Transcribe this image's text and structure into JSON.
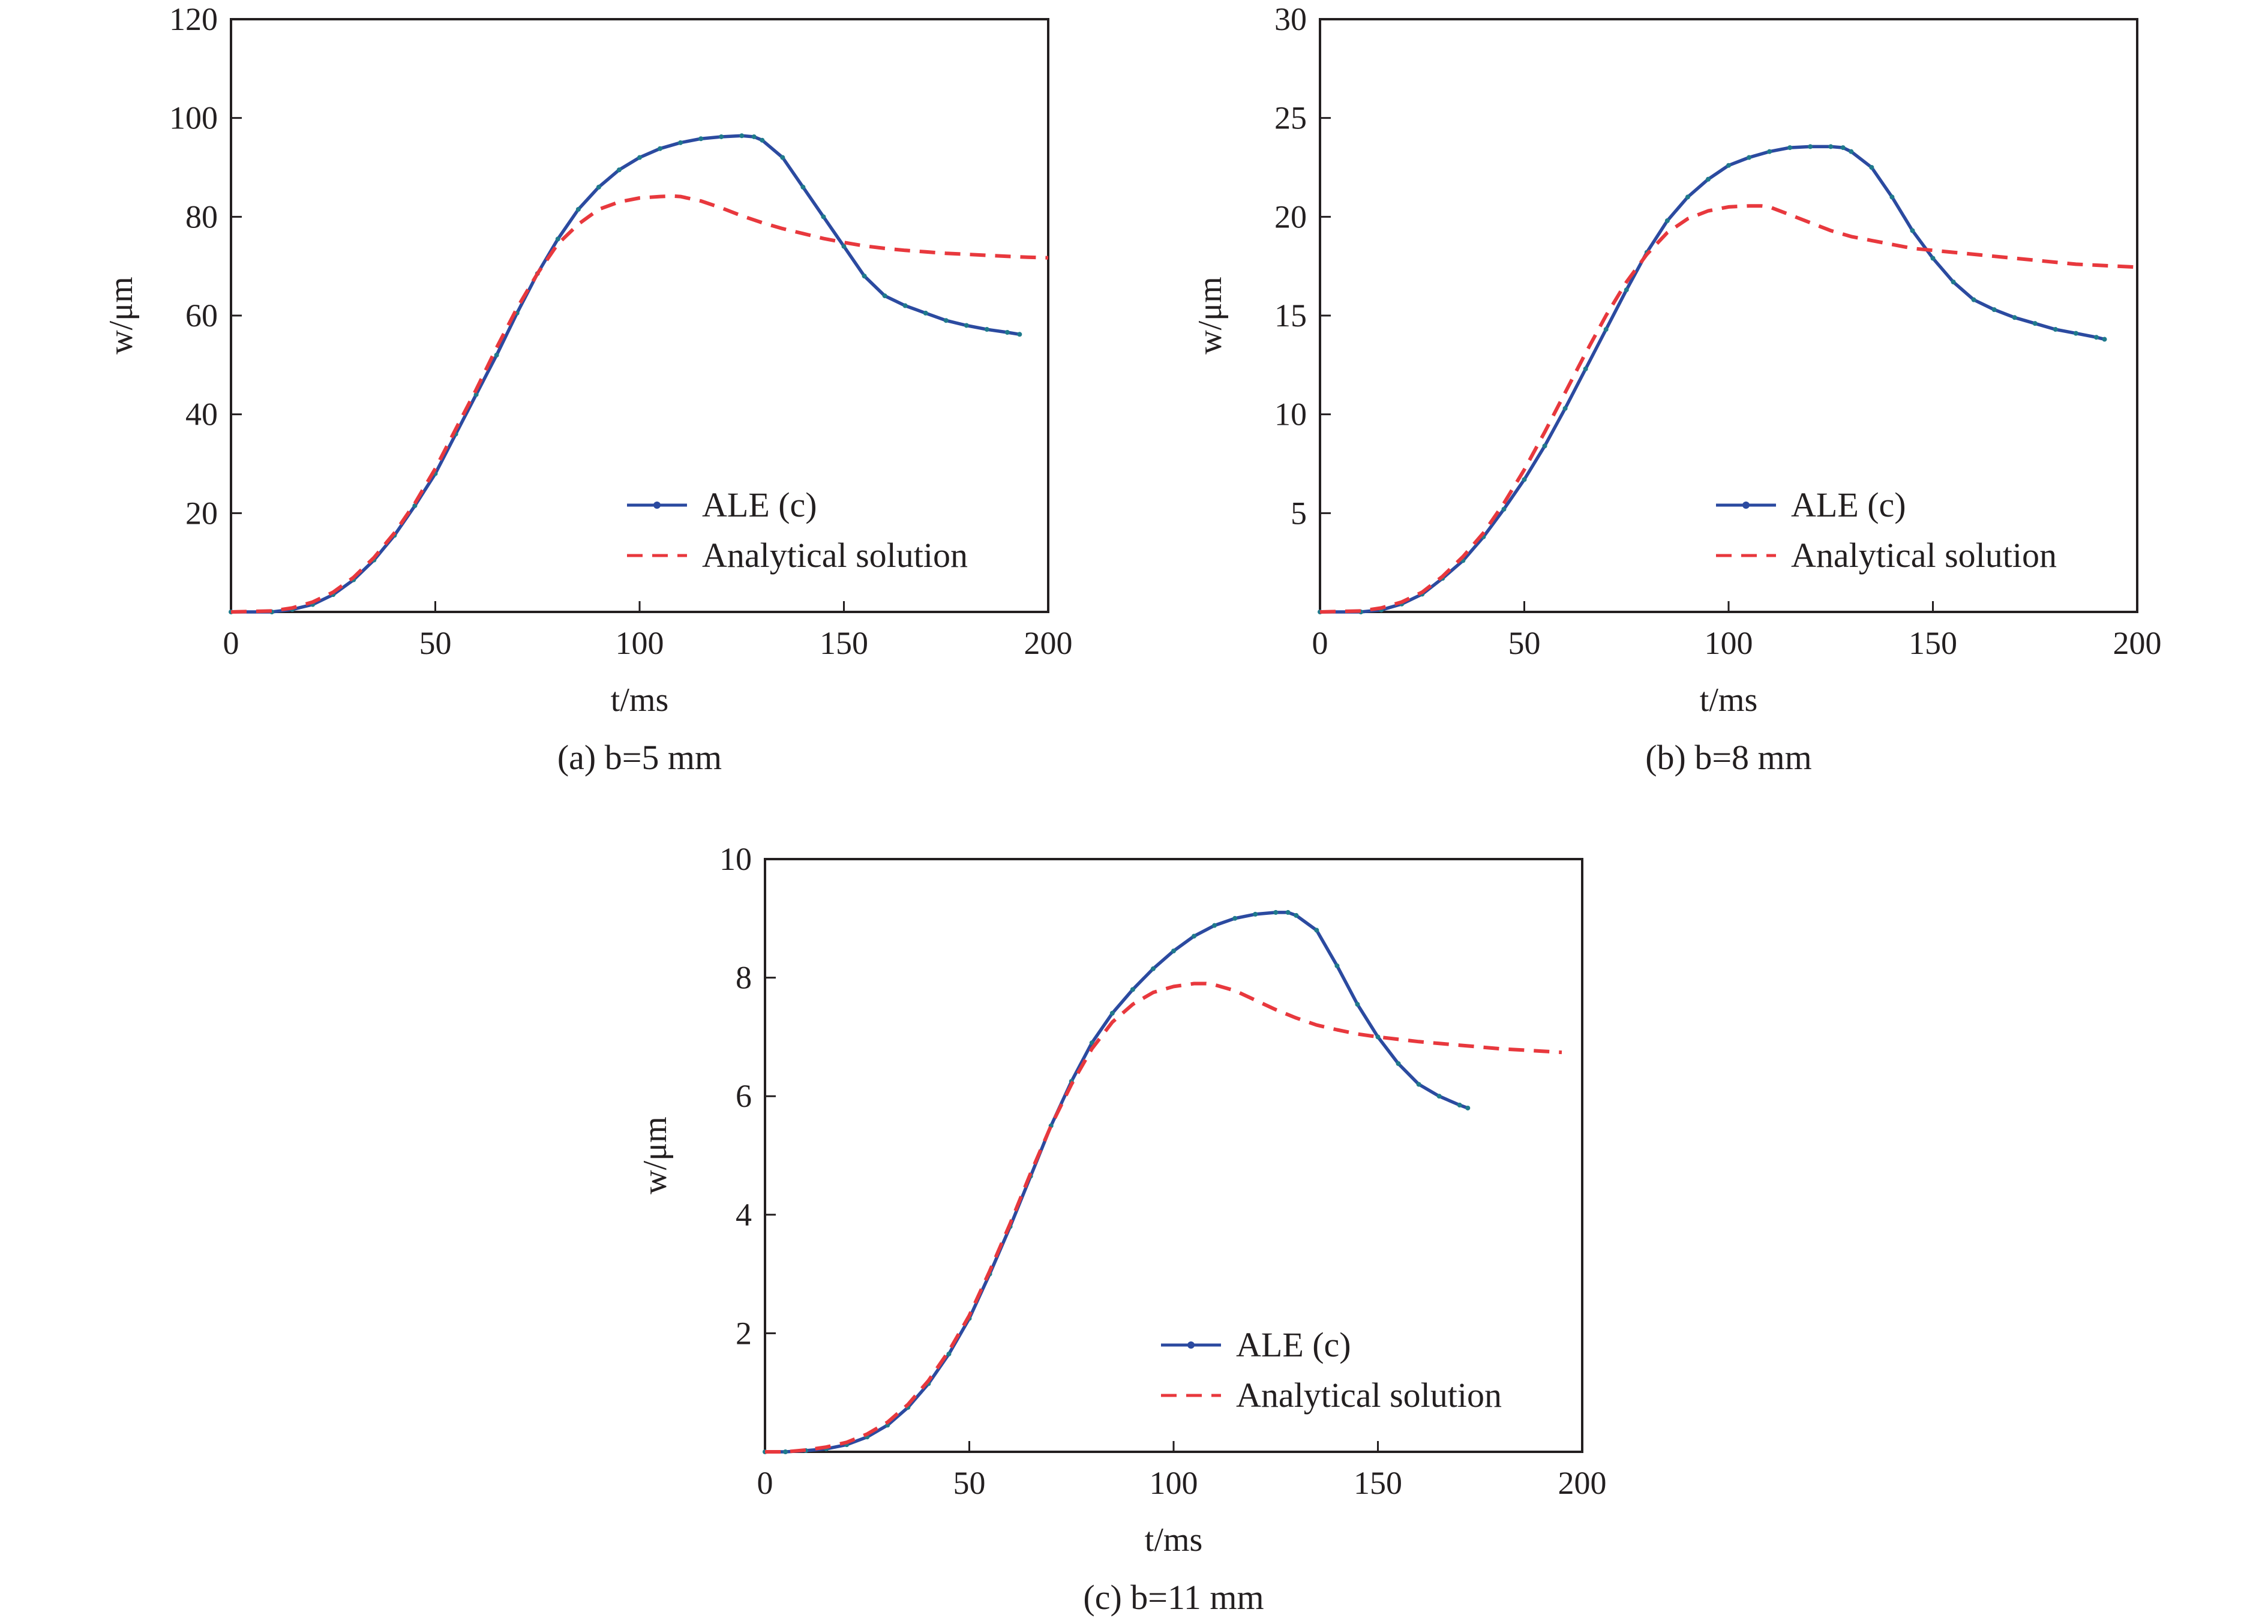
{
  "chart_data": [
    {
      "type": "line",
      "caption": "(a) b=5 mm",
      "xlabel": "t/ms",
      "ylabel": "w/μm",
      "xlim": [
        0,
        200
      ],
      "ylim": [
        0,
        120
      ],
      "xticks": [
        "0",
        "50",
        "100",
        "150",
        "200"
      ],
      "yticks": [
        "20",
        "40",
        "60",
        "80",
        "100",
        "120"
      ],
      "grid": false,
      "legend": "bottom-right",
      "series": [
        {
          "name": "ALE (c)",
          "color": "#2b4aa0",
          "style": "solid-marker",
          "x": [
            0,
            10,
            15,
            20,
            25,
            30,
            35,
            40,
            45,
            50,
            55,
            60,
            65,
            70,
            75,
            80,
            85,
            90,
            95,
            100,
            105,
            110,
            115,
            120,
            125,
            128,
            130,
            135,
            140,
            145,
            150,
            155,
            160,
            165,
            170,
            175,
            180,
            185,
            190,
            193
          ],
          "y": [
            0,
            0,
            0.5,
            1.5,
            3.5,
            6.5,
            10.5,
            15.5,
            21.5,
            28,
            36,
            44,
            52,
            60.5,
            68.5,
            75.5,
            81.5,
            86,
            89.5,
            92,
            93.8,
            95,
            95.8,
            96.2,
            96.4,
            96.2,
            95.5,
            92,
            86,
            80,
            74,
            68,
            64,
            62,
            60.5,
            59,
            58,
            57.2,
            56.6,
            56.2
          ]
        },
        {
          "name": "Analytical solution",
          "color": "#e8383d",
          "style": "dashed",
          "x": [
            0,
            10,
            15,
            20,
            25,
            30,
            35,
            40,
            45,
            50,
            55,
            60,
            65,
            70,
            75,
            80,
            85,
            90,
            95,
            100,
            105,
            108,
            110,
            115,
            120,
            125,
            130,
            135,
            140,
            145,
            150,
            155,
            160,
            165,
            170,
            175,
            180,
            185,
            190,
            195,
            200
          ],
          "y": [
            0,
            0.2,
            0.8,
            2,
            4,
            7,
            11,
            16,
            22,
            29,
            37,
            45,
            53.5,
            61.5,
            68.5,
            74.5,
            78.5,
            81.5,
            83,
            83.8,
            84.1,
            84.2,
            84.1,
            83.2,
            81.8,
            80.2,
            78.8,
            77.6,
            76.6,
            75.6,
            74.8,
            74.1,
            73.6,
            73.2,
            72.9,
            72.6,
            72.4,
            72.2,
            72,
            71.8,
            71.7
          ]
        }
      ]
    },
    {
      "type": "line",
      "caption": "(b) b=8 mm",
      "xlabel": "t/ms",
      "ylabel": "w/μm",
      "xlim": [
        0,
        200
      ],
      "ylim": [
        0,
        30
      ],
      "xticks": [
        "0",
        "50",
        "100",
        "150",
        "200"
      ],
      "yticks": [
        "5",
        "10",
        "15",
        "20",
        "25",
        "30"
      ],
      "grid": false,
      "legend": "bottom-right",
      "series": [
        {
          "name": "ALE (c)",
          "color": "#2b4aa0",
          "style": "solid-marker",
          "x": [
            0,
            10,
            15,
            20,
            25,
            30,
            35,
            40,
            45,
            50,
            55,
            60,
            65,
            70,
            75,
            80,
            85,
            90,
            95,
            100,
            105,
            110,
            115,
            120,
            125,
            128,
            130,
            135,
            140,
            145,
            150,
            155,
            160,
            165,
            170,
            175,
            180,
            185,
            190,
            192
          ],
          "y": [
            0,
            0,
            0.1,
            0.4,
            0.9,
            1.7,
            2.6,
            3.8,
            5.2,
            6.7,
            8.4,
            10.3,
            12.3,
            14.3,
            16.3,
            18.2,
            19.8,
            21,
            21.9,
            22.6,
            23,
            23.3,
            23.5,
            23.55,
            23.55,
            23.5,
            23.3,
            22.5,
            21,
            19.3,
            17.9,
            16.7,
            15.8,
            15.3,
            14.9,
            14.6,
            14.3,
            14.1,
            13.9,
            13.8
          ]
        },
        {
          "name": "Analytical solution",
          "color": "#e8383d",
          "style": "dashed",
          "x": [
            0,
            10,
            15,
            20,
            25,
            30,
            35,
            40,
            45,
            50,
            55,
            60,
            65,
            70,
            75,
            80,
            85,
            90,
            95,
            100,
            105,
            108,
            110,
            115,
            120,
            125,
            130,
            135,
            140,
            145,
            150,
            155,
            160,
            165,
            170,
            175,
            180,
            185,
            190,
            195,
            200
          ],
          "y": [
            0,
            0.05,
            0.2,
            0.5,
            1,
            1.8,
            2.8,
            4,
            5.5,
            7.2,
            9.1,
            11.1,
            13.1,
            15,
            16.7,
            18.1,
            19.2,
            19.9,
            20.3,
            20.5,
            20.55,
            20.55,
            20.5,
            20.1,
            19.7,
            19.3,
            19,
            18.8,
            18.6,
            18.4,
            18.3,
            18.2,
            18.1,
            18,
            17.9,
            17.8,
            17.7,
            17.6,
            17.55,
            17.5,
            17.45
          ]
        }
      ]
    },
    {
      "type": "line",
      "caption": "(c) b=11 mm",
      "xlabel": "t/ms",
      "ylabel": "w/μm",
      "xlim": [
        0,
        200
      ],
      "ylim": [
        0,
        10
      ],
      "xticks": [
        "0",
        "50",
        "100",
        "150",
        "200"
      ],
      "yticks": [
        "2",
        "4",
        "6",
        "8",
        "10"
      ],
      "grid": false,
      "legend": "bottom-right",
      "series": [
        {
          "name": "ALE (c)",
          "color": "#2b4aa0",
          "style": "solid-marker",
          "x": [
            0,
            5,
            10,
            15,
            20,
            25,
            30,
            35,
            40,
            45,
            50,
            55,
            60,
            65,
            70,
            75,
            80,
            85,
            90,
            95,
            100,
            105,
            110,
            115,
            120,
            125,
            128,
            130,
            135,
            140,
            145,
            150,
            155,
            160,
            165,
            170,
            172
          ],
          "y": [
            0,
            0,
            0.02,
            0.05,
            0.12,
            0.25,
            0.45,
            0.75,
            1.15,
            1.65,
            2.25,
            3,
            3.8,
            4.65,
            5.5,
            6.25,
            6.9,
            7.4,
            7.8,
            8.15,
            8.45,
            8.7,
            8.88,
            9,
            9.07,
            9.1,
            9.1,
            9.05,
            8.8,
            8.2,
            7.55,
            7,
            6.55,
            6.2,
            6,
            5.85,
            5.8
          ]
        },
        {
          "name": "Analytical solution",
          "color": "#e8383d",
          "style": "dashed",
          "x": [
            0,
            5,
            10,
            15,
            20,
            25,
            30,
            35,
            40,
            45,
            50,
            55,
            60,
            65,
            70,
            75,
            80,
            85,
            90,
            95,
            100,
            105,
            108,
            110,
            115,
            120,
            125,
            130,
            135,
            140,
            145,
            150,
            155,
            160,
            165,
            170,
            175,
            180,
            185,
            190,
            195
          ],
          "y": [
            0,
            0,
            0.03,
            0.08,
            0.16,
            0.3,
            0.5,
            0.8,
            1.2,
            1.7,
            2.3,
            3.05,
            3.85,
            4.7,
            5.5,
            6.2,
            6.8,
            7.25,
            7.55,
            7.75,
            7.85,
            7.9,
            7.9,
            7.88,
            7.78,
            7.62,
            7.46,
            7.32,
            7.2,
            7.12,
            7.05,
            7,
            6.96,
            6.92,
            6.89,
            6.86,
            6.83,
            6.8,
            6.78,
            6.76,
            6.74
          ]
        }
      ]
    }
  ]
}
